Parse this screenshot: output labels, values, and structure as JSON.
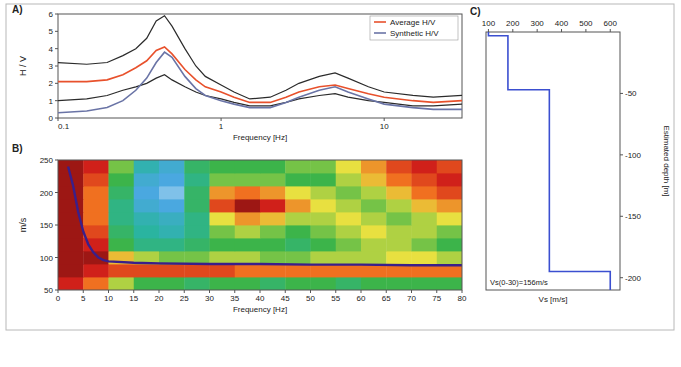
{
  "chart_data": [
    {
      "type": "line",
      "title": "A)",
      "x_label": "Frequency [Hz]",
      "y_label": "H / V",
      "log": "x",
      "grid": false,
      "legend": "top-right",
      "x": [
        0.1,
        0.15,
        0.2,
        0.25,
        0.3,
        0.35,
        0.4,
        0.45,
        0.5,
        0.6,
        0.7,
        0.8,
        1,
        1.2,
        1.5,
        2,
        2.5,
        3,
        4,
        5,
        6,
        8,
        10,
        15,
        20,
        30
      ],
      "xlim": [
        0.1,
        30
      ],
      "xticks": [
        0.1,
        1,
        10
      ],
      "ylim": [
        0,
        6
      ],
      "yticks": [
        0,
        1,
        2,
        3,
        4,
        5,
        6
      ],
      "series": [
        {
          "color": "#2b2b2b",
          "values": [
            3.2,
            3.1,
            3.2,
            3.6,
            4.0,
            4.6,
            5.6,
            5.9,
            5.3,
            4.0,
            3.0,
            2.4,
            1.9,
            1.5,
            1.1,
            1.2,
            1.6,
            2.0,
            2.4,
            2.6,
            2.3,
            1.8,
            1.5,
            1.3,
            1.2,
            1.3
          ]
        },
        {
          "color": "#2b2b2b",
          "values": [
            1.0,
            1.1,
            1.3,
            1.6,
            1.8,
            2.0,
            2.3,
            2.5,
            2.2,
            1.8,
            1.5,
            1.3,
            1.1,
            0.9,
            0.7,
            0.7,
            0.9,
            1.1,
            1.3,
            1.4,
            1.2,
            1.0,
            0.9,
            0.7,
            0.7,
            0.8
          ]
        },
        {
          "name": "Synthetic H/V",
          "color": "#6a74a6",
          "values": [
            0.3,
            0.4,
            0.6,
            1.0,
            1.6,
            2.3,
            3.2,
            3.8,
            3.5,
            2.4,
            1.7,
            1.3,
            1.0,
            0.8,
            0.6,
            0.6,
            0.9,
            1.2,
            1.6,
            1.8,
            1.5,
            1.1,
            0.8,
            0.6,
            0.5,
            0.5
          ]
        },
        {
          "name": "Average H/V",
          "color": "#e8512c",
          "values": [
            2.1,
            2.1,
            2.2,
            2.5,
            2.9,
            3.3,
            3.9,
            4.1,
            3.7,
            2.8,
            2.2,
            1.8,
            1.5,
            1.2,
            0.9,
            0.9,
            1.2,
            1.5,
            1.8,
            1.9,
            1.7,
            1.4,
            1.2,
            1.0,
            0.9,
            1.0
          ]
        }
      ]
    },
    {
      "type": "heatmap",
      "title": "B)",
      "x_label": "Frequency [Hz]",
      "y_label": "m/s",
      "grid": false,
      "xlim": [
        0,
        80
      ],
      "xticks": [
        0,
        5,
        10,
        15,
        20,
        25,
        30,
        35,
        40,
        45,
        50,
        55,
        60,
        65,
        70,
        75,
        80
      ],
      "ylim": [
        50,
        250
      ],
      "yticks": [
        50,
        100,
        150,
        200,
        250
      ],
      "x_bins": [
        0,
        5,
        10,
        15,
        20,
        25,
        30,
        35,
        40,
        45,
        50,
        55,
        60,
        65,
        70,
        75,
        80
      ],
      "y_bins": [
        50,
        70,
        90,
        110,
        130,
        150,
        170,
        190,
        210,
        230,
        250
      ],
      "zlim": [
        0,
        1
      ],
      "z": [
        [
          0.9,
          0.8,
          0.6,
          0.5,
          0.5,
          0.45,
          0.5,
          0.5,
          0.45,
          0.5,
          0.5,
          0.45,
          0.5,
          0.5,
          0.5,
          0.5
        ],
        [
          0.95,
          0.9,
          0.85,
          0.85,
          0.85,
          0.85,
          0.85,
          0.8,
          0.8,
          0.8,
          0.8,
          0.8,
          0.8,
          0.8,
          0.8,
          0.8
        ],
        [
          0.95,
          0.95,
          0.7,
          0.6,
          0.55,
          0.55,
          0.6,
          0.6,
          0.55,
          0.55,
          0.6,
          0.6,
          0.6,
          0.65,
          0.65,
          0.6
        ],
        [
          0.95,
          0.9,
          0.5,
          0.4,
          0.4,
          0.45,
          0.5,
          0.5,
          0.5,
          0.45,
          0.5,
          0.55,
          0.6,
          0.6,
          0.55,
          0.5
        ],
        [
          0.95,
          0.85,
          0.45,
          0.35,
          0.3,
          0.4,
          0.55,
          0.6,
          0.55,
          0.5,
          0.55,
          0.6,
          0.65,
          0.6,
          0.6,
          0.55
        ],
        [
          0.95,
          0.8,
          0.4,
          0.3,
          0.25,
          0.4,
          0.65,
          0.75,
          0.7,
          0.6,
          0.6,
          0.65,
          0.6,
          0.55,
          0.6,
          0.65
        ],
        [
          0.95,
          0.8,
          0.4,
          0.2,
          0.15,
          0.45,
          0.85,
          0.95,
          0.9,
          0.75,
          0.65,
          0.6,
          0.55,
          0.6,
          0.7,
          0.75
        ],
        [
          0.95,
          0.8,
          0.45,
          0.15,
          0.1,
          0.45,
          0.75,
          0.8,
          0.75,
          0.65,
          0.6,
          0.55,
          0.6,
          0.7,
          0.8,
          0.85
        ],
        [
          0.95,
          0.85,
          0.5,
          0.2,
          0.15,
          0.4,
          0.55,
          0.55,
          0.55,
          0.5,
          0.5,
          0.6,
          0.7,
          0.8,
          0.85,
          0.9
        ],
        [
          0.95,
          0.9,
          0.55,
          0.3,
          0.2,
          0.45,
          0.5,
          0.5,
          0.5,
          0.55,
          0.55,
          0.65,
          0.75,
          0.85,
          0.9,
          0.85
        ]
      ],
      "x": [
        2,
        3,
        4,
        5,
        6,
        7,
        8,
        9,
        10,
        15,
        20,
        30,
        40,
        50,
        60,
        70,
        80
      ],
      "series": [
        {
          "type": "line",
          "color": "#3a1f8a",
          "values": [
            240,
            210,
            170,
            140,
            120,
            108,
            100,
            96,
            94,
            92,
            91,
            90,
            90,
            89,
            89,
            88,
            88
          ]
        }
      ]
    },
    {
      "type": "line",
      "title": "C)",
      "x_label": "Vs [m/s]",
      "y_label": "Estimated depth [m]",
      "annotation": "Vs(0-30)=156m/s",
      "grid": false,
      "x": [
        100,
        100,
        180,
        180,
        350,
        350,
        600,
        600
      ],
      "xlim": [
        90,
        640
      ],
      "xticks": [
        100,
        200,
        300,
        400,
        500,
        600
      ],
      "ylim": [
        -210,
        0
      ],
      "yticks": [
        -50,
        -100,
        -150,
        -200
      ],
      "series": [
        {
          "color": "#3b4fd0",
          "values": [
            0,
            -3,
            -3,
            -47,
            -47,
            -195,
            -195,
            -210
          ]
        }
      ]
    }
  ]
}
